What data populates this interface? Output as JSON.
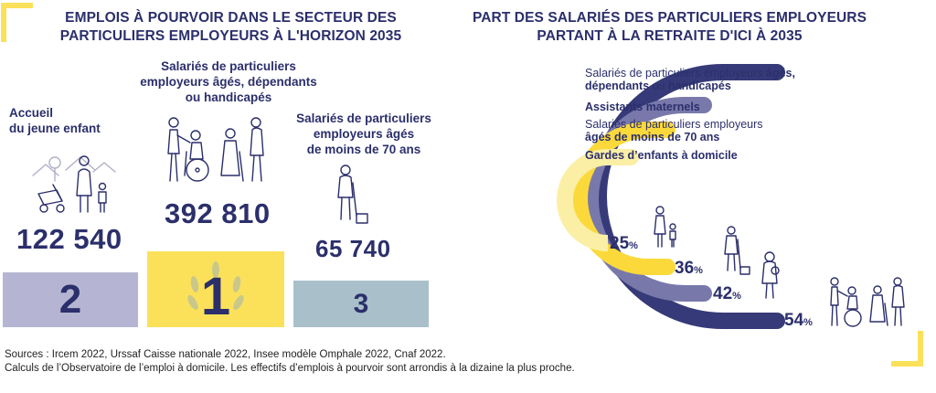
{
  "colors": {
    "navy": "#2b2f6b",
    "yellow": "#fbe15a",
    "lavender": "#b5b5d3",
    "slate": "#a9c0cb",
    "arc1": "#363a78",
    "arc2": "#7978ab",
    "arc3": "#fbd93b",
    "arc4": "#fbefa6"
  },
  "left": {
    "title_line1": "EMPLOIS À POURVOIR DANS LE SECTEUR DES",
    "title_line2": "PARTICULIERS EMPLOYEURS À L'HORIZON 2035"
  },
  "right": {
    "title_line1": "PART DES SALARIÉS DES PARTICULIERS EMPLOYEURS",
    "title_line2": "PARTANT À LA RETRAITE D'ICI À 2035"
  },
  "chart_data": [
    {
      "type": "bar",
      "title": "EMPLOIS À POURVOIR DANS LE SECTEUR DES PARTICULIERS EMPLOYEURS À L'HORIZON 2035",
      "categories": [
        "Accueil du jeune enfant",
        "Salariés de particuliers employeurs âgés, dépendants ou handicapés",
        "Salariés de particuliers employeurs âgés de moins de 70 ans"
      ],
      "values": [
        122540,
        392810,
        65740
      ],
      "value_labels": [
        "122 540",
        "392 810",
        "65 740"
      ],
      "ranks": [
        "2",
        "1",
        "3"
      ],
      "cat_lines": [
        [
          "Accueil",
          "du jeune enfant"
        ],
        [
          "Salariés de particuliers",
          "employeurs âgés, dépendants",
          "ou handicapés"
        ],
        [
          "Salariés de particuliers",
          "employeurs âgés",
          "de moins de 70 ans"
        ]
      ]
    },
    {
      "type": "bar",
      "title": "PART DES SALARIÉS DES PARTICULIERS EMPLOYEURS PARTANT À LA RETRAITE D'ICI À 2035",
      "series": [
        {
          "name": "Salariés de particuliers employeurs âgés, dépendants ou handicapés",
          "value": 54
        },
        {
          "name": "Assistants maternels",
          "value": 42
        },
        {
          "name": "Salariés de particuliers employeurs âgés de moins de 70 ans",
          "value": 36
        },
        {
          "name": "Gardes d'enfants à domicile",
          "value": 25
        }
      ],
      "unit": "%"
    }
  ],
  "legend": {
    "l1a": "Salariés de particuliers employeurs ",
    "l1b": "âgés,",
    "l1c": "dépendants",
    "l1d": " ou ",
    "l1e": "handicapés",
    "l2": "Assistants maternels",
    "l3a": "Salariés de particuliers employeurs",
    "l3b": "âgés de moins de 70 ans",
    "l4": "Gardes d’enfants à domicile"
  },
  "pct_labels": [
    "25",
    "36",
    "42",
    "54"
  ],
  "pct_unit": "%",
  "sources": {
    "line1": "Sources : Ircem 2022, Urssaf Caisse nationale 2022, Insee modèle Omphale 2022, Cnaf 2022.",
    "line2": "Calculs de l’Observatoire de l’emploi à domicile. Les effectifs d’emplois à pourvoir sont arrondis à la dizaine la plus proche."
  }
}
